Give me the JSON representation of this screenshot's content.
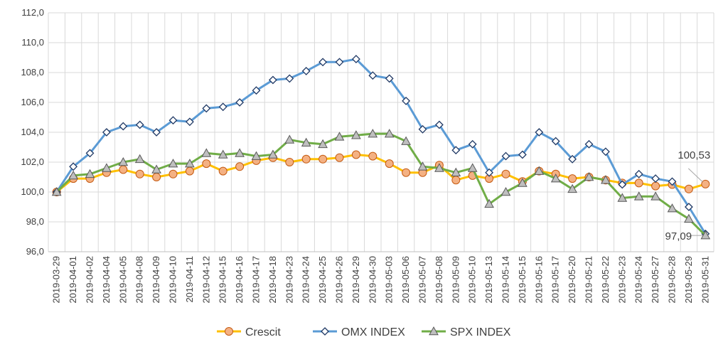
{
  "chart_data": {
    "type": "line",
    "title": "",
    "xlabel": "",
    "ylabel": "",
    "ylim": [
      96,
      112
    ],
    "yticks": [
      "96,0",
      "98,0",
      "100,0",
      "102,0",
      "104,0",
      "106,0",
      "108,0",
      "110,0",
      "112,0"
    ],
    "grid": true,
    "legend_position": "bottom",
    "categories": [
      "2019-03-29",
      "2019-04-01",
      "2019-04-02",
      "2019-04-04",
      "2019-04-05",
      "2019-04-08",
      "2019-04-09",
      "2019-04-10",
      "2019-04-11",
      "2019-04-12",
      "2019-04-15",
      "2019-04-16",
      "2019-04-17",
      "2019-04-18",
      "2019-04-23",
      "2019-04-24",
      "2019-04-25",
      "2019-04-26",
      "2019-04-29",
      "2019-04-30",
      "2019-05-03",
      "2019-05-06",
      "2019-05-07",
      "2019-05-08",
      "2019-05-09",
      "2019-05-10",
      "2019-05-13",
      "2019-05-14",
      "2019-05-15",
      "2019-05-16",
      "2019-05-17",
      "2019-05-20",
      "2019-05-21",
      "2019-05-22",
      "2019-05-23",
      "2019-05-24",
      "2019-05-27",
      "2019-05-28",
      "2019-05-29",
      "2019-05-31"
    ],
    "series": [
      {
        "name": "Crescit",
        "line_color": "#ffc000",
        "marker": "circle",
        "marker_fill": "#f4b183",
        "marker_stroke": "#c55a11",
        "values": [
          100.0,
          100.9,
          100.9,
          101.3,
          101.5,
          101.2,
          101.0,
          101.2,
          101.4,
          101.9,
          101.4,
          101.7,
          102.1,
          102.3,
          102.0,
          102.2,
          102.2,
          102.3,
          102.5,
          102.4,
          101.9,
          101.3,
          101.3,
          101.8,
          100.8,
          101.1,
          100.9,
          101.2,
          100.7,
          101.4,
          101.2,
          100.9,
          101.0,
          100.8,
          100.6,
          100.6,
          100.4,
          100.5,
          100.2,
          100.53
        ]
      },
      {
        "name": "OMX INDEX",
        "line_color": "#5b9bd5",
        "marker": "diamond",
        "marker_fill": "#ffffff",
        "marker_stroke": "#1f3864",
        "values": [
          100.0,
          101.7,
          102.6,
          104.0,
          104.4,
          104.5,
          104.0,
          104.8,
          104.7,
          105.6,
          105.7,
          106.0,
          106.8,
          107.5,
          107.6,
          108.1,
          108.7,
          108.7,
          108.9,
          107.8,
          107.6,
          106.1,
          104.2,
          104.5,
          102.8,
          103.2,
          101.3,
          102.4,
          102.5,
          104.0,
          103.4,
          102.2,
          103.2,
          102.7,
          100.5,
          101.2,
          100.9,
          100.7,
          99.0,
          97.2
        ]
      },
      {
        "name": "SPX INDEX",
        "line_color": "#70ad47",
        "marker": "triangle",
        "marker_fill": "#bfbfbf",
        "marker_stroke": "#595959",
        "values": [
          100.0,
          101.1,
          101.2,
          101.6,
          102.0,
          102.2,
          101.5,
          101.9,
          101.9,
          102.6,
          102.5,
          102.6,
          102.4,
          102.5,
          103.5,
          103.3,
          103.2,
          103.7,
          103.8,
          103.9,
          103.9,
          103.4,
          101.7,
          101.6,
          101.3,
          101.6,
          99.2,
          100.0,
          100.6,
          101.4,
          100.9,
          100.2,
          101.0,
          100.8,
          99.6,
          99.7,
          99.7,
          98.9,
          98.2,
          97.09
        ]
      }
    ],
    "annotations": [
      {
        "text": "100,53",
        "series": 0,
        "index": 39
      },
      {
        "text": "97,09",
        "series": 2,
        "index": 39
      }
    ]
  }
}
